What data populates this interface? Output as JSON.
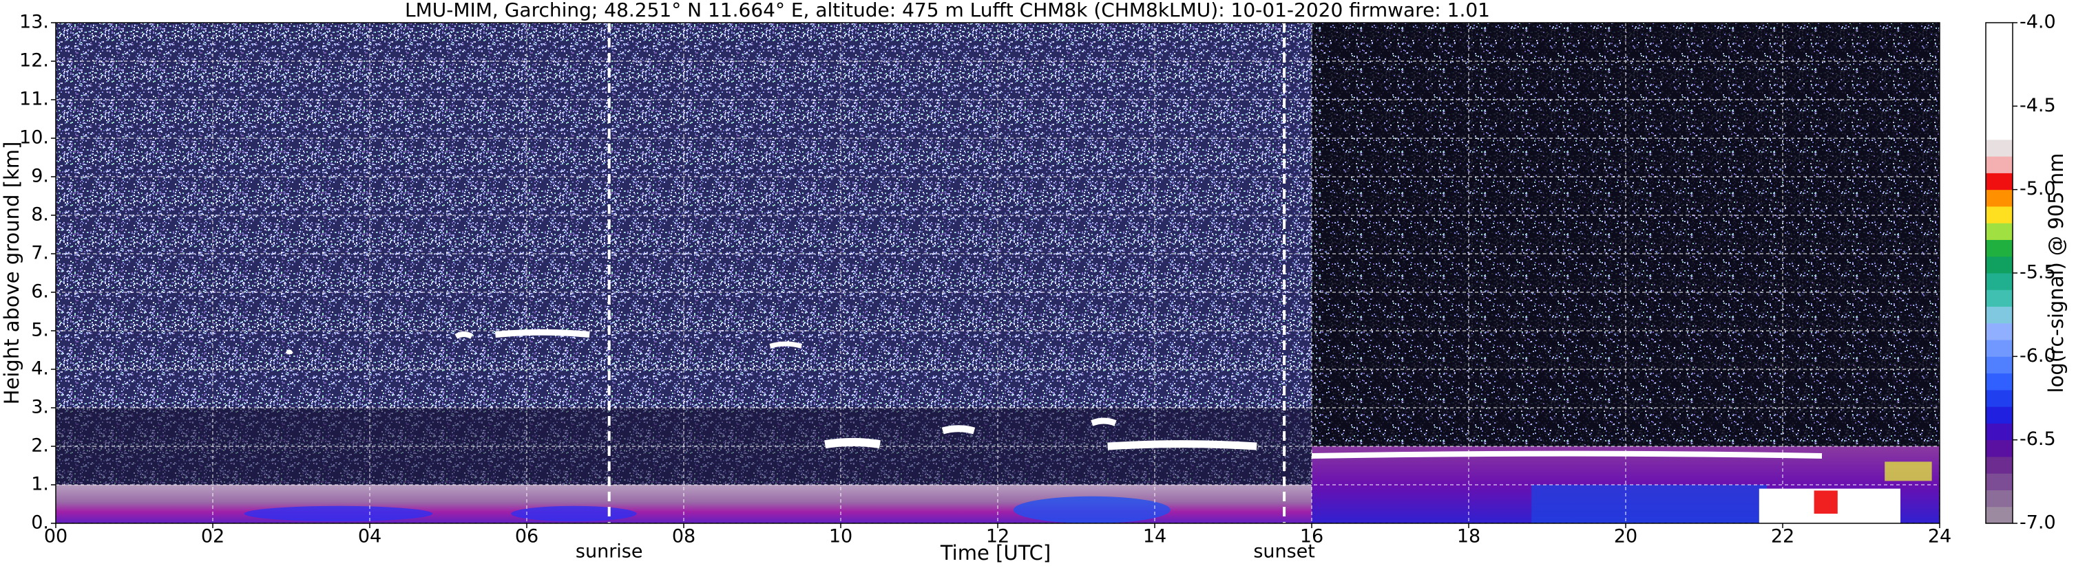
{
  "chart_data": {
    "type": "heatmap",
    "title": "LMU-MIM, Garching; 48.251° N 11.664° E, altitude: 475 m    Lufft CHM8k (CHM8kLMU): 10-01-2020    firmware: 1.01",
    "x_label": "Time [UTC]",
    "y_label": "Height above ground [km]",
    "colorbar_label": "log(rc-signal) @ 905 nm",
    "xlim": [
      0,
      24
    ],
    "xticks": [
      {
        "value": 0,
        "label": "00"
      },
      {
        "value": 2,
        "label": "02"
      },
      {
        "value": 4,
        "label": "04"
      },
      {
        "value": 6,
        "label": "06"
      },
      {
        "value": 8,
        "label": "08"
      },
      10,
      12,
      14,
      16,
      18,
      20,
      22,
      24
    ],
    "ylim": [
      0,
      13
    ],
    "yticks": [
      {
        "value": 0,
        "label": "0."
      },
      {
        "value": 1,
        "label": "1."
      },
      {
        "value": 2,
        "label": "2."
      },
      {
        "value": 3,
        "label": "3."
      },
      {
        "value": 4,
        "label": "4."
      },
      {
        "value": 5,
        "label": "5."
      },
      {
        "value": 6,
        "label": "6."
      },
      {
        "value": 7,
        "label": "7."
      },
      {
        "value": 8,
        "label": "8."
      },
      {
        "value": 9,
        "label": "9."
      },
      {
        "value": 10,
        "label": "10."
      },
      {
        "value": 11,
        "label": "11."
      },
      {
        "value": 12,
        "label": "12."
      },
      {
        "value": 13,
        "label": "13."
      }
    ],
    "clim": [
      -7,
      -4
    ],
    "cticks": [
      {
        "value": -7,
        "label": "-7.0"
      },
      {
        "value": -6.5,
        "label": "-6.5"
      },
      {
        "value": -6,
        "label": "-6.0"
      },
      {
        "value": -5.5,
        "label": "-5.5"
      },
      {
        "value": -5,
        "label": "-5.0"
      },
      {
        "value": -4.5,
        "label": "-4.5"
      },
      {
        "value": -4,
        "label": "-4.0"
      }
    ],
    "colorbar_colors": [
      "#9c8aa0",
      "#8c6c98",
      "#7c4c94",
      "#6c2c90",
      "#5a10a0",
      "#4010c0",
      "#2020e0",
      "#2040f0",
      "#3060ff",
      "#5080ff",
      "#7098ff",
      "#90b0ff",
      "#80c8e0",
      "#40c0b0",
      "#20b090",
      "#10a060",
      "#20b040",
      "#a0e040",
      "#ffe020",
      "#ff9000",
      "#f01010",
      "#f4b0b0",
      "#e8e0e0",
      "#ffffff",
      "#ffffff",
      "#ffffff",
      "#ffffff",
      "#ffffff",
      "#ffffff",
      "#ffffff"
    ],
    "grid": true,
    "annotations": [
      {
        "label": "sunrise",
        "x": 7.05
      },
      {
        "label": "sunset",
        "x": 15.65
      }
    ]
  }
}
